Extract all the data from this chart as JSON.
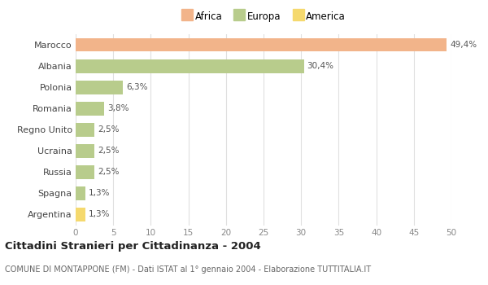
{
  "categories": [
    "Marocco",
    "Albania",
    "Polonia",
    "Romania",
    "Regno Unito",
    "Ucraina",
    "Russia",
    "Spagna",
    "Argentina"
  ],
  "values": [
    49.4,
    30.4,
    6.3,
    3.8,
    2.5,
    2.5,
    2.5,
    1.3,
    1.3
  ],
  "labels": [
    "49,4%",
    "30,4%",
    "6,3%",
    "3,8%",
    "2,5%",
    "2,5%",
    "2,5%",
    "1,3%",
    "1,3%"
  ],
  "colors": [
    "#f2b48a",
    "#b8cc8c",
    "#b8cc8c",
    "#b8cc8c",
    "#b8cc8c",
    "#b8cc8c",
    "#b8cc8c",
    "#b8cc8c",
    "#f5d96e"
  ],
  "legend": [
    {
      "label": "Africa",
      "color": "#f2b48a"
    },
    {
      "label": "Europa",
      "color": "#b8cc8c"
    },
    {
      "label": "America",
      "color": "#f5d96e"
    }
  ],
  "xlim": [
    0,
    50
  ],
  "xticks": [
    0,
    5,
    10,
    15,
    20,
    25,
    30,
    35,
    40,
    45,
    50
  ],
  "title": "Cittadini Stranieri per Cittadinanza - 2004",
  "subtitle": "COMUNE DI MONTAPPONE (FM) - Dati ISTAT al 1° gennaio 2004 - Elaborazione TUTTITALIA.IT",
  "background_color": "#ffffff",
  "grid_color": "#e0e0e0"
}
